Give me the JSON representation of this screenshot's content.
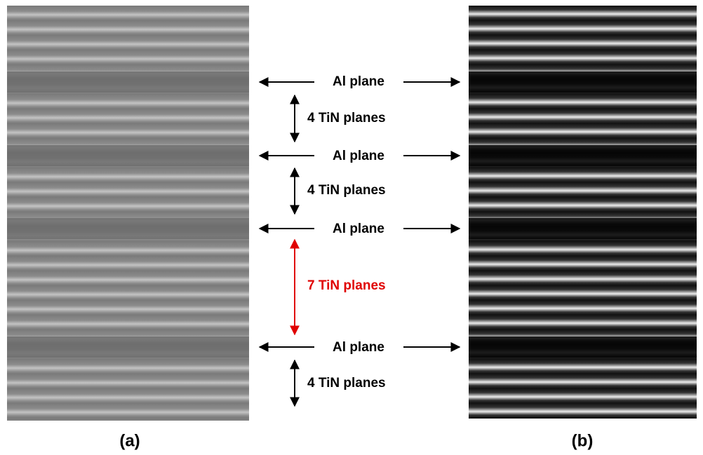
{
  "panels": [
    {
      "label": "(a)"
    },
    {
      "label": "(b)"
    }
  ],
  "annotations": [
    {
      "text": "Al plane"
    },
    {
      "text": "4 TiN planes"
    },
    {
      "text": "Al plane"
    },
    {
      "text": "4 TiN planes"
    },
    {
      "text": "Al plane"
    },
    {
      "text": "7 TiN planes"
    },
    {
      "text": "Al plane"
    },
    {
      "text": "4 TiN planes"
    }
  ]
}
